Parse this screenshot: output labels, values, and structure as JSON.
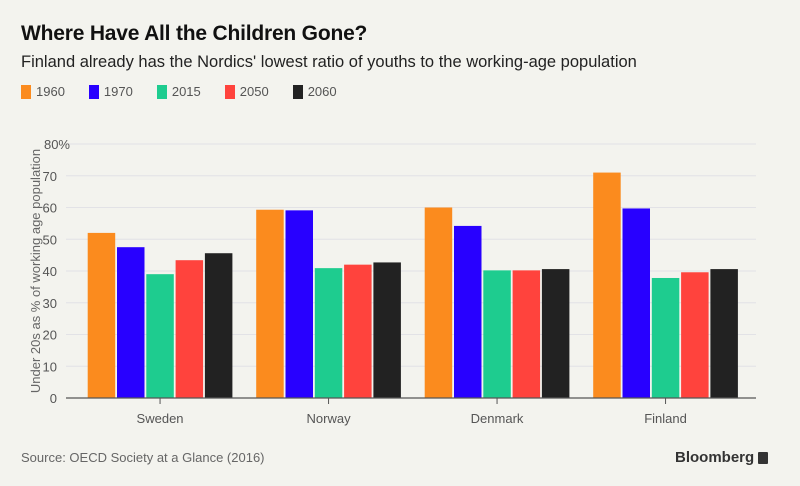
{
  "header": {
    "title": "Where Have All the Children Gone?",
    "subtitle": "Finland already has the Nordics' lowest ratio of youths to the working-age population"
  },
  "footer": {
    "source": "Source: OECD Society at a Glance (2016)",
    "brand": "Bloomberg",
    "brand_icon": "bloomberg-chart-icon"
  },
  "chart_data": {
    "type": "bar",
    "title": "Where Have All the Children Gone?",
    "subtitle": "Finland already has the Nordics' lowest ratio of youths to the working-age population",
    "xlabel": "",
    "ylabel": "Under 20s as % of working age population",
    "categories": [
      "Sweden",
      "Norway",
      "Denmark",
      "Finland"
    ],
    "series": [
      {
        "name": "1960",
        "color": "#fb8b1e",
        "values": [
          52,
          59.3,
          60,
          71
        ]
      },
      {
        "name": "1970",
        "color": "#2800ff",
        "values": [
          47.5,
          59.1,
          54.2,
          59.7
        ]
      },
      {
        "name": "2015",
        "color": "#1ecc8f",
        "values": [
          39,
          40.9,
          40.2,
          37.8
        ]
      },
      {
        "name": "2050",
        "color": "#ff433d",
        "values": [
          43.4,
          42,
          40.2,
          39.6
        ]
      },
      {
        "name": "2060",
        "color": "#222222",
        "values": [
          45.6,
          42.7,
          40.6,
          40.6
        ]
      }
    ],
    "ylim": [
      0,
      80
    ],
    "yticks": [
      0,
      10,
      20,
      30,
      40,
      50,
      60,
      70,
      80
    ],
    "ytick_labels": [
      "0",
      "10",
      "20",
      "30",
      "40",
      "50",
      "60",
      "70",
      "80%"
    ],
    "grid": true,
    "legend_position": "top-left"
  }
}
